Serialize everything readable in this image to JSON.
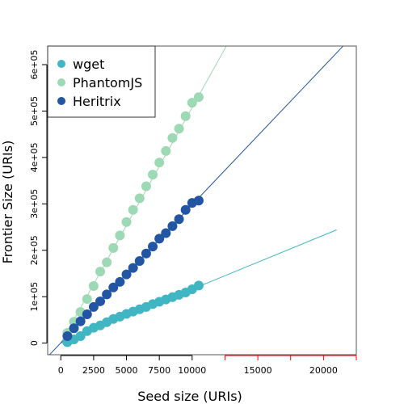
{
  "chart_data": {
    "type": "scatter",
    "title": "",
    "xlabel": "Seed size (URIs)",
    "ylabel": "Frontier Size (URIs)",
    "xlim": [
      -1000,
      22500
    ],
    "ylim": [
      -25000,
      640000
    ],
    "x_ticks": [
      {
        "value": 0,
        "label": "0",
        "color": "#000000"
      },
      {
        "value": 2500,
        "label": "2500",
        "color": "#000000"
      },
      {
        "value": 5000,
        "label": "5000",
        "color": "#000000"
      },
      {
        "value": 7500,
        "label": "7500",
        "color": "#000000"
      },
      {
        "value": 10000,
        "label": "10000",
        "color": "#000000"
      },
      {
        "value": 15000,
        "label": "15000",
        "color": "#ff0000"
      },
      {
        "value": 20000,
        "label": "20000",
        "color": "#ff0000"
      }
    ],
    "x_minor_ticks_red": [
      12500,
      17500,
      22500
    ],
    "red_axis_range": [
      12500,
      22500
    ],
    "y_ticks": [
      {
        "value": 0,
        "label": "0"
      },
      {
        "value": 100000,
        "label": "1e+05"
      },
      {
        "value": 200000,
        "label": "2e+05"
      },
      {
        "value": 300000,
        "label": "3e+05"
      },
      {
        "value": 400000,
        "label": "4e+05"
      },
      {
        "value": 500000,
        "label": "5e+05"
      },
      {
        "value": 600000,
        "label": "6e+05"
      }
    ],
    "legend": {
      "position": "top-left"
    },
    "grid": false,
    "series": [
      {
        "name": "wget",
        "color": "#3fb6c2",
        "x": [
          500,
          1000,
          1500,
          2000,
          2500,
          3000,
          3500,
          4000,
          4500,
          5000,
          5500,
          6000,
          6500,
          7000,
          7500,
          8000,
          8500,
          9000,
          9500,
          10000,
          10500
        ],
        "y": [
          2000,
          8000,
          15000,
          26000,
          33000,
          38000,
          45000,
          52000,
          57000,
          63000,
          68000,
          73000,
          78000,
          84000,
          89000,
          94000,
          99000,
          104000,
          109000,
          116000,
          124000
        ],
        "fit": {
          "x": [
            0,
            21000
          ],
          "y": [
            0,
            244000
          ]
        }
      },
      {
        "name": "PhantomJS",
        "color": "#9dd9b4",
        "x": [
          500,
          1000,
          1500,
          2000,
          2500,
          3000,
          3500,
          4000,
          4500,
          5000,
          5500,
          6000,
          6500,
          7000,
          7500,
          8000,
          8500,
          9000,
          9500,
          10000,
          10500
        ],
        "y": [
          22000,
          46000,
          67000,
          95000,
          123000,
          154000,
          174000,
          205000,
          232000,
          261000,
          287000,
          312000,
          338000,
          363000,
          389000,
          414000,
          442000,
          462000,
          489000,
          518000,
          530000
        ],
        "fit": {
          "x": [
            0,
            13000
          ],
          "y": [
            0,
            660000
          ]
        }
      },
      {
        "name": "Heritrix",
        "color": "#2255a2",
        "x": [
          500,
          1000,
          1500,
          2000,
          2500,
          3000,
          3500,
          4000,
          4500,
          5000,
          5500,
          6000,
          6500,
          7000,
          7500,
          8000,
          8500,
          9000,
          9500,
          10000,
          10500
        ],
        "y": [
          15000,
          32000,
          47000,
          62000,
          78000,
          90000,
          105000,
          120000,
          132000,
          148000,
          162000,
          177000,
          193000,
          208000,
          225000,
          237000,
          252000,
          267000,
          287000,
          302000,
          307000
        ],
        "fit": {
          "x": [
            -2000,
            22500
          ],
          "y": [
            -59000,
            670000
          ]
        }
      }
    ]
  }
}
